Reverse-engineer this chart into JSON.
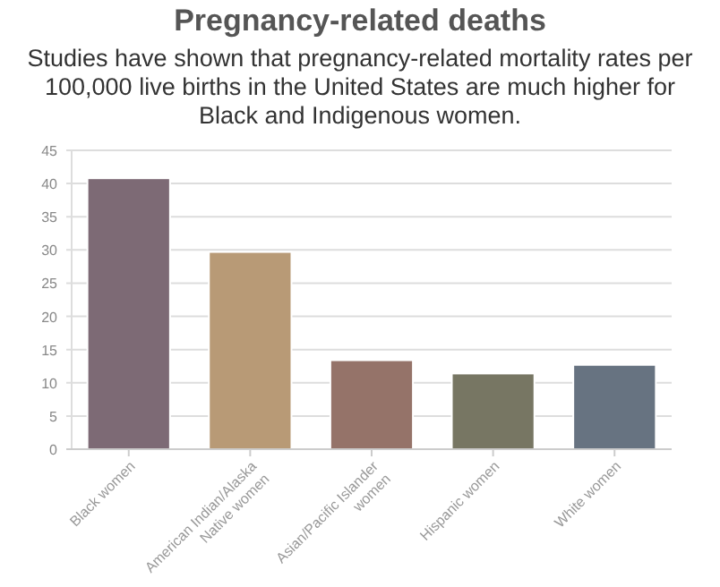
{
  "chart_data": {
    "type": "bar",
    "title": "Pregnancy-related deaths",
    "subtitle": "Studies have shown that pregnancy-related mortality rates per 100,000 live births in the United States are much higher for Black and Indigenous women.",
    "categories": [
      "Black women",
      "American Indian/Alaska Native women",
      "Asian/Pacific Islander women",
      "Hispanic women",
      "White women"
    ],
    "values": [
      40.8,
      29.7,
      13.4,
      11.4,
      12.7
    ],
    "colors": [
      "#7d6a75",
      "#b89a76",
      "#957369",
      "#777663",
      "#677381"
    ],
    "ylim": [
      0,
      45
    ],
    "yticks": [
      0,
      5,
      10,
      15,
      20,
      25,
      30,
      35,
      40,
      45
    ],
    "grid": "y"
  }
}
